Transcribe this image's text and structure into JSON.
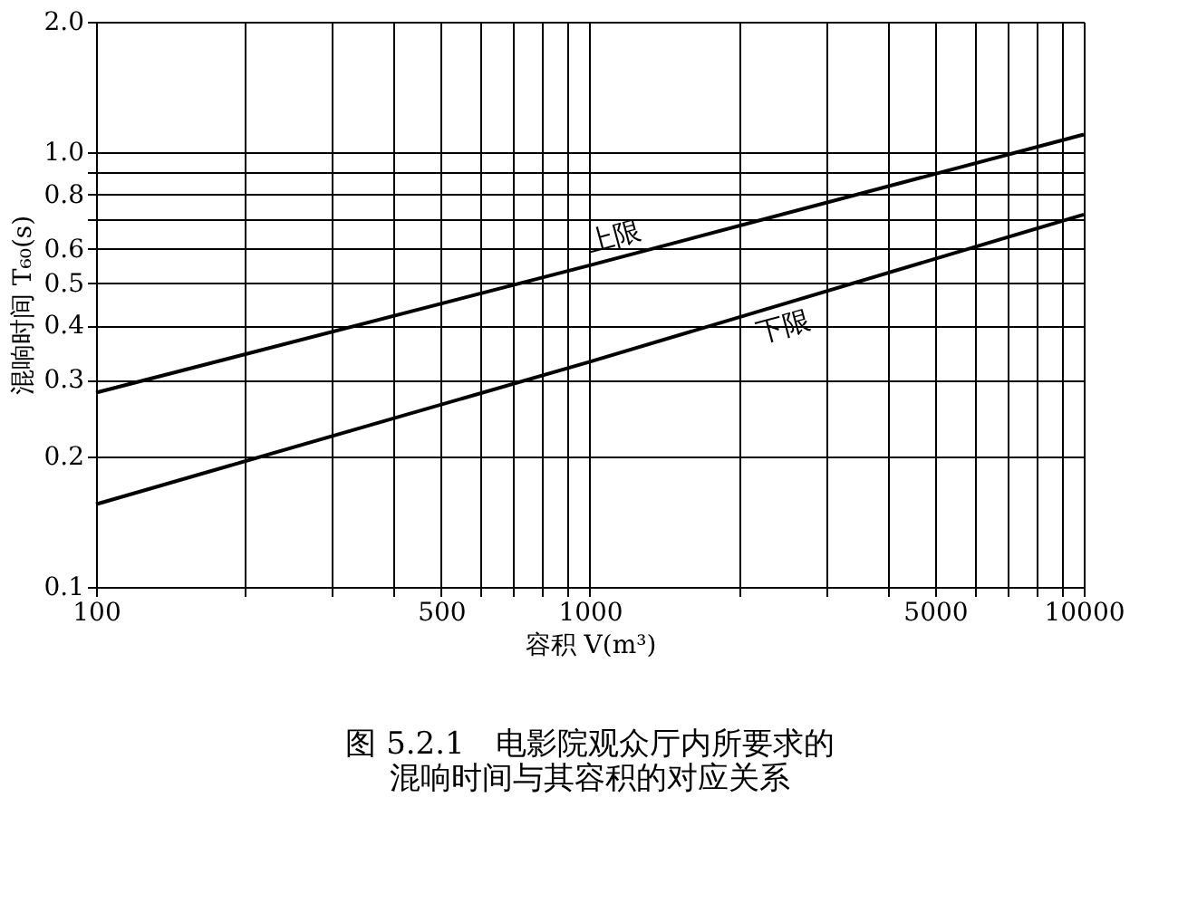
{
  "chart_data": {
    "type": "line",
    "title": "图 5.2.1　电影院观众厅内所要求的混响时间与其容积的对应关系",
    "xlabel": "容积 V(m³)",
    "ylabel": "混响时间 T₆₀(s)",
    "series": [
      {
        "name": "上限",
        "x": [
          100,
          1000,
          10000
        ],
        "values": [
          0.28,
          0.55,
          1.1
        ],
        "color": "#000000"
      },
      {
        "name": "下限",
        "x": [
          100,
          1000,
          10000
        ],
        "values": [
          0.155,
          0.33,
          0.72
        ],
        "color": "#000000"
      }
    ],
    "log": "xy",
    "xlim": [
      100,
      10000
    ],
    "ylim": [
      0.1,
      2.0
    ],
    "xticks": [
      100,
      {
        "value": 200,
        "label": null
      },
      {
        "value": 300,
        "label": null
      },
      {
        "value": 400,
        "label": null
      },
      500,
      {
        "value": 600,
        "label": null
      },
      {
        "value": 700,
        "label": null
      },
      {
        "value": 800,
        "label": null
      },
      {
        "value": 900,
        "label": null
      },
      1000,
      {
        "value": 2000,
        "label": null
      },
      {
        "value": 3000,
        "label": null
      },
      {
        "value": 4000,
        "label": null
      },
      5000,
      {
        "value": 6000,
        "label": null
      },
      {
        "value": 7000,
        "label": null
      },
      {
        "value": 8000,
        "label": null
      },
      {
        "value": 9000,
        "label": null
      },
      10000
    ],
    "yticks": [
      0.1,
      0.2,
      0.3,
      0.4,
      0.5,
      0.6,
      {
        "value": 0.7,
        "label": null
      },
      0.8,
      {
        "value": 0.9,
        "label": null
      },
      {
        "value": 1.0,
        "label": "1.0"
      },
      {
        "value": 2.0,
        "label": "2.0"
      }
    ],
    "grid": true,
    "marker": "none",
    "line_style": "solid"
  }
}
